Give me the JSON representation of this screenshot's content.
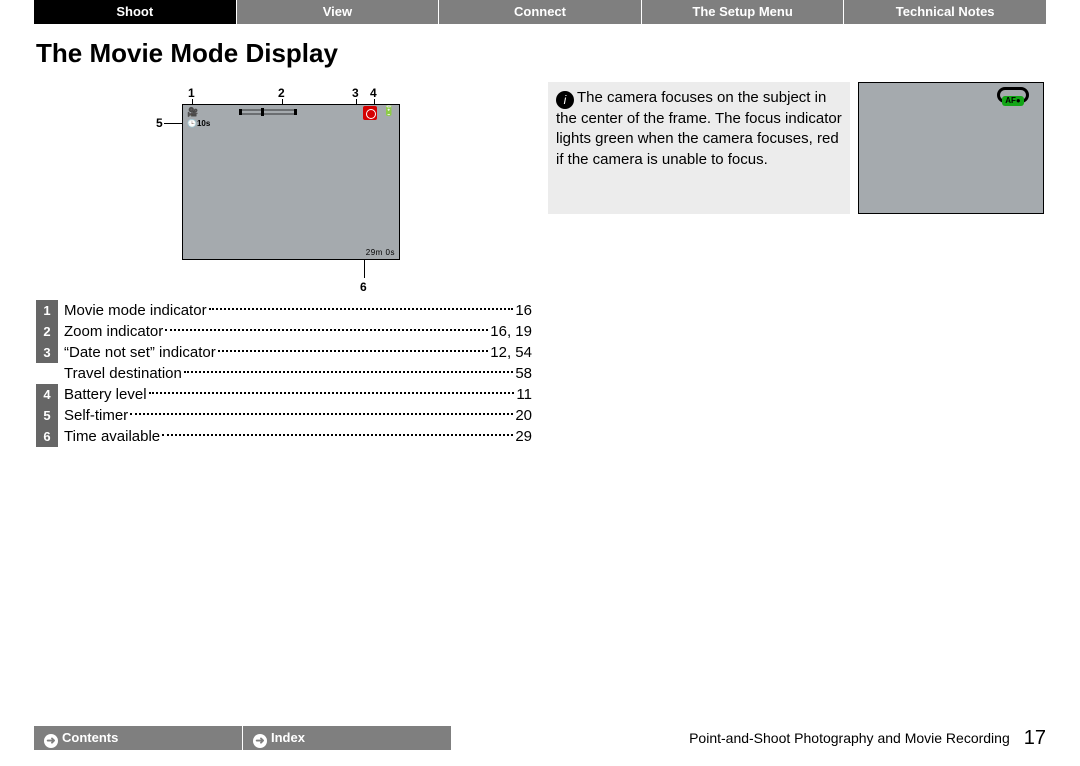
{
  "nav": {
    "items": [
      {
        "label": "Shoot",
        "active": true
      },
      {
        "label": "View",
        "active": false
      },
      {
        "label": "Connect",
        "active": false
      },
      {
        "label": "The Setup Menu",
        "active": false
      },
      {
        "label": "Technical Notes",
        "active": false
      }
    ],
    "active_bg": "#000000",
    "inactive_bg": "#7f7f7f",
    "text_color": "#ffffff"
  },
  "title": "The Movie Mode Display",
  "display": {
    "bg_color": "#a5aaae",
    "callouts": [
      "1",
      "2",
      "3",
      "4",
      "5",
      "6"
    ],
    "self_timer_text": "10s",
    "time_available": "29m  0s"
  },
  "reference": {
    "rows": [
      {
        "n": "1",
        "label": "Movie mode indicator",
        "page": "16"
      },
      {
        "n": "2",
        "label": "Zoom indicator",
        "page": "16, 19"
      },
      {
        "n": "3",
        "label": "“Date not set” indicator",
        "page": "12, 54"
      },
      {
        "n": "",
        "label": "Travel destination",
        "page": "58"
      },
      {
        "n": "4",
        "label": "Battery level",
        "page": "11"
      },
      {
        "n": "5",
        "label": "Self-timer",
        "page": "20"
      },
      {
        "n": "6",
        "label": "Time available",
        "page": "29"
      }
    ]
  },
  "note": {
    "text": "The camera focuses on the subject in the center of the frame. The focus indicator lights green when the camera focuses, red if the camera is unable to focus.",
    "af_label": "AF●",
    "af_color": "#12a516"
  },
  "footer": {
    "buttons": [
      {
        "label": "Contents"
      },
      {
        "label": "Index"
      }
    ],
    "caption": "Point-and-Shoot Photography and Movie Recording",
    "page": "17"
  }
}
